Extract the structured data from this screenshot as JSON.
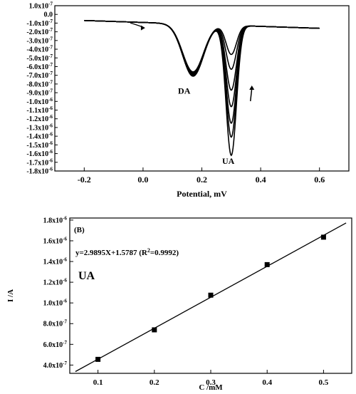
{
  "chart_data": [
    {
      "type": "line",
      "xlabel": "Potential, mV",
      "ylabel": "",
      "xlim": [
        -0.3,
        0.7
      ],
      "ylim": [
        -1.8e-06,
        1e-07
      ],
      "x_ticks": [
        -0.2,
        0.0,
        0.2,
        0.4,
        0.6
      ],
      "x_tick_labels": [
        "-0.2",
        "0.0",
        "0.2",
        "0.4",
        "0.6"
      ],
      "y_tick_labels": [
        {
          "m": "1.0x10",
          "e": "-7",
          "v": 1e-07
        },
        {
          "m": "0.0",
          "e": "",
          "v": 0
        },
        {
          "m": "-1.0x10",
          "e": "-7",
          "v": -1e-07
        },
        {
          "m": "-2.0x10",
          "e": "-7",
          "v": -2e-07
        },
        {
          "m": "-3.0x10",
          "e": "-7",
          "v": -3e-07
        },
        {
          "m": "-4.0x10",
          "e": "-7",
          "v": -4e-07
        },
        {
          "m": "-5.0x10",
          "e": "-7",
          "v": -5e-07
        },
        {
          "m": "-6.0x10",
          "e": "-7",
          "v": -6e-07
        },
        {
          "m": "-7.0x10",
          "e": "-7",
          "v": -7e-07
        },
        {
          "m": "-8.0x10",
          "e": "-7",
          "v": -8e-07
        },
        {
          "m": "-9.0x10",
          "e": "-7",
          "v": -9e-07
        },
        {
          "m": "-1.0x10",
          "e": "-6",
          "v": -1e-06
        },
        {
          "m": "-1.1x10",
          "e": "-6",
          "v": -1.1e-06
        },
        {
          "m": "-1.2x10",
          "e": "-6",
          "v": -1.2e-06
        },
        {
          "m": "-1.3x10",
          "e": "-6",
          "v": -1.3e-06
        },
        {
          "m": "-1.4x10",
          "e": "-6",
          "v": -1.4e-06
        },
        {
          "m": "-1.5x10",
          "e": "-6",
          "v": -1.5e-06
        },
        {
          "m": "-1.6x10",
          "e": "-6",
          "v": -1.6e-06
        },
        {
          "m": "-1.7x10",
          "e": "-6",
          "v": -1.7e-06
        },
        {
          "m": "-1.8x10",
          "e": "-6",
          "v": -1.8e-06
        }
      ],
      "baseline": {
        "start": -0.2,
        "end": 0.6,
        "y_start": -7e-08,
        "y_end": -1.6e-07
      },
      "da_peak": {
        "x": 0.17,
        "width": 0.05
      },
      "ua_peak": {
        "x": 0.3,
        "width": 0.025
      },
      "series": [
        {
          "da_peak": -6.6e-07,
          "ua_peak": -4.6e-07
        },
        {
          "da_peak": -6.7e-07,
          "ua_peak": -6.3e-07
        },
        {
          "da_peak": -6.8e-07,
          "ua_peak": -8.7e-07
        },
        {
          "da_peak": -6.9e-07,
          "ua_peak": -1.06e-06
        },
        {
          "da_peak": -7e-07,
          "ua_peak": -1.25e-06
        },
        {
          "da_peak": -7.05e-07,
          "ua_peak": -1.41e-06
        },
        {
          "da_peak": -7.1e-07,
          "ua_peak": -1.62e-06
        }
      ],
      "annotations": [
        {
          "text": "DA",
          "x": 0.14,
          "y": -9.1e-07
        },
        {
          "text": "UA",
          "x": 0.29,
          "y": -1.72e-06
        }
      ],
      "arrows": [
        {
          "direction": "right",
          "x": 0.0,
          "y": -1.3e-07
        },
        {
          "direction": "up",
          "x": 0.37,
          "y": -8.5e-07
        }
      ],
      "grid": false
    },
    {
      "type": "scatter",
      "panel_label": "(B)",
      "equation": "y=2.9895X+1.5787 (R",
      "equation_sup": "2",
      "equation_tail": "=0.9992)",
      "series_label": "UA",
      "xlabel": "C /mM",
      "ylabel": "I /A",
      "xlim": [
        0.05,
        0.55
      ],
      "ylim": [
        3.2e-07,
        1.82e-06
      ],
      "x_ticks": [
        0.1,
        0.2,
        0.3,
        0.4,
        0.5
      ],
      "x_tick_labels": [
        "0.1",
        "0.2",
        "0.3",
        "0.4",
        "0.5"
      ],
      "y_tick_labels": [
        {
          "m": "1.8x10",
          "e": "-6",
          "v": 1.8e-06
        },
        {
          "m": "1.6x10",
          "e": "-6",
          "v": 1.6e-06
        },
        {
          "m": "1.4x10",
          "e": "-6",
          "v": 1.4e-06
        },
        {
          "m": "1.2x10",
          "e": "-6",
          "v": 1.2e-06
        },
        {
          "m": "1.0x10",
          "e": "-6",
          "v": 1e-06
        },
        {
          "m": "8.0x10",
          "e": "-7",
          "v": 8e-07
        },
        {
          "m": "6.0x10",
          "e": "-7",
          "v": 6e-07
        },
        {
          "m": "4.0x10",
          "e": "-7",
          "v": 4e-07
        }
      ],
      "x": [
        0.1,
        0.2,
        0.3,
        0.4,
        0.5
      ],
      "y": [
        4.55e-07,
        7.4e-07,
        1.075e-06,
        1.37e-06,
        1.635e-06
      ],
      "fit": {
        "slope": 2.9895e-06,
        "intercept": 1.5787e-07,
        "x_start": 0.06,
        "x_end": 0.54
      },
      "grid": false
    }
  ]
}
